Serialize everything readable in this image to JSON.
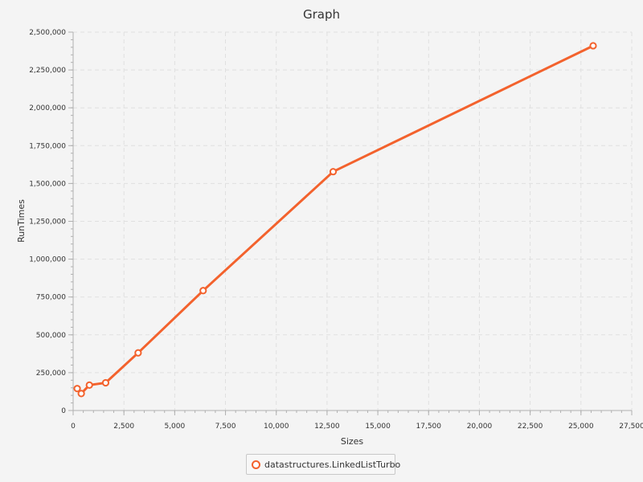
{
  "chart_data": {
    "type": "line",
    "title": "Graph",
    "xlabel": "Sizes",
    "ylabel": "RunTimes",
    "xlim": [
      0,
      27500
    ],
    "ylim": [
      0,
      2500000
    ],
    "x_ticks": [
      0,
      2500,
      5000,
      7500,
      10000,
      12500,
      15000,
      17500,
      20000,
      22500,
      25000,
      27500
    ],
    "y_ticks": [
      0,
      250000,
      500000,
      750000,
      1000000,
      1250000,
      1500000,
      1750000,
      2000000,
      2250000,
      2500000
    ],
    "x_tick_labels": [
      "0",
      "2,500",
      "5,000",
      "7,500",
      "10,000",
      "12,500",
      "15,000",
      "17,500",
      "20,000",
      "22,500",
      "25,000",
      "27,500"
    ],
    "y_tick_labels": [
      "0",
      "250,000",
      "500,000",
      "750,000",
      "1,000,000",
      "1,250,000",
      "1,500,000",
      "1,750,000",
      "2,000,000",
      "2,250,000",
      "2,500,000"
    ],
    "grid": true,
    "legend_position": "bottom",
    "series": [
      {
        "name": "datastructures.LinkedListTurbo",
        "color": "#f3622d",
        "x": [
          200,
          400,
          800,
          1600,
          3200,
          6400,
          12800,
          25600
        ],
        "y": [
          145000,
          112000,
          168000,
          183000,
          381000,
          792000,
          1578000,
          2410000
        ]
      }
    ]
  }
}
